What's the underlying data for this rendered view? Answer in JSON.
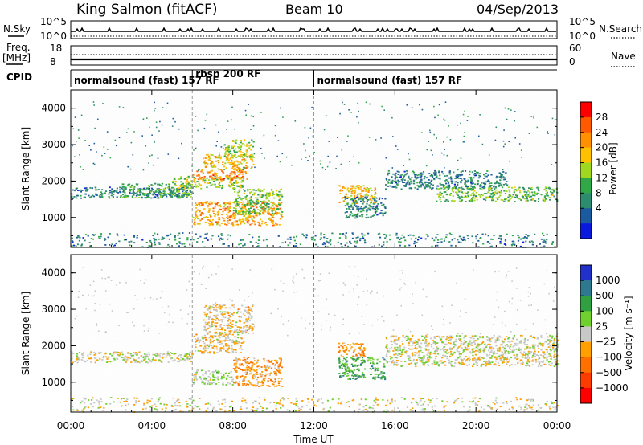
{
  "header": {
    "station": "King Salmon (fitACF)",
    "beam": "Beam 10",
    "date": "04/Sep/2013"
  },
  "strips": {
    "nsky_label": "N.Sky",
    "nsky_ticks": [
      "10^5",
      "10^0"
    ],
    "nsearch_label": "N.Search",
    "nsearch_ticks": [
      "10^5",
      "10^0"
    ],
    "freq_label": "Freq.",
    "freq_unit": "[MHz]",
    "freq_ticks": [
      "18",
      "8"
    ],
    "nave_label": "Nave",
    "nave_ticks": [
      "60",
      "0"
    ],
    "cpid_label": "CPID",
    "cpid_segments": [
      {
        "label": "normalsound (fast) 157 RF",
        "start_hour": 0.0,
        "end_hour": 6.0
      },
      {
        "label": "rbsp 200 RF",
        "start_hour": 6.0,
        "end_hour": 12.0
      },
      {
        "label": "normalsound (fast) 157 RF",
        "start_hour": 12.0,
        "end_hour": 24.0
      }
    ]
  },
  "axes": {
    "ylabel": "Slant Range [km]",
    "xlabel": "Time UT",
    "x_ticks": [
      "00:00",
      "04:00",
      "08:00",
      "12:00",
      "16:00",
      "20:00",
      "00:00"
    ],
    "y_ticks": [
      "1000",
      "2000",
      "3000",
      "4000"
    ]
  },
  "power_scale": {
    "title": "Power [dB]",
    "ticks": [
      "28",
      "24",
      "20",
      "16",
      "12",
      "8",
      "4"
    ],
    "colors": [
      "#ff0000",
      "#ff5a00",
      "#ff9000",
      "#ffc000",
      "#a0d820",
      "#30a848",
      "#2e8c6e",
      "#1c5aa0",
      "#0a1adc"
    ]
  },
  "velocity_scale": {
    "title": "Velocity [m s⁻¹]",
    "ticks": [
      "1000",
      "500",
      "100",
      "25",
      "−25",
      "−100",
      "−500",
      "−1000"
    ],
    "colors": [
      "#2030c8",
      "#2e7890",
      "#30a040",
      "#70d030",
      "#c8c8c8",
      "#ffa000",
      "#ff7000",
      "#ff3c00",
      "#ff0000"
    ]
  },
  "chart_data": [
    {
      "type": "heatmap",
      "panel": "power",
      "x_unit": "hour UT",
      "y_unit": "km",
      "xlim": [
        0,
        24
      ],
      "ylim": [
        180,
        4500
      ],
      "zlim": [
        0,
        32
      ],
      "regions": [
        {
          "x": [
            0.0,
            6.0
          ],
          "y": [
            1550,
            1850
          ],
          "value": 8
        },
        {
          "x": [
            2.5,
            6.0
          ],
          "y": [
            1550,
            1950
          ],
          "value": 12
        },
        {
          "x": [
            5.0,
            8.5
          ],
          "y": [
            1800,
            2150
          ],
          "value": 16
        },
        {
          "x": [
            6.0,
            8.7
          ],
          "y": [
            2050,
            2350
          ],
          "value": 24
        },
        {
          "x": [
            6.5,
            9.0
          ],
          "y": [
            2350,
            2750
          ],
          "value": 20
        },
        {
          "x": [
            7.5,
            9.0
          ],
          "y": [
            2650,
            3150
          ],
          "value": 16
        },
        {
          "x": [
            6.0,
            10.4
          ],
          "y": [
            800,
            1450
          ],
          "value": 22
        },
        {
          "x": [
            8.0,
            10.4
          ],
          "y": [
            1100,
            1800
          ],
          "value": 14
        },
        {
          "x": [
            13.2,
            15.0
          ],
          "y": [
            1400,
            1900
          ],
          "value": 20
        },
        {
          "x": [
            13.5,
            15.5
          ],
          "y": [
            1000,
            1600
          ],
          "value": 8
        },
        {
          "x": [
            15.5,
            21.5
          ],
          "y": [
            1800,
            2300
          ],
          "value": 8
        },
        {
          "x": [
            18.0,
            24.0
          ],
          "y": [
            1450,
            1850
          ],
          "value": 14
        },
        {
          "x": [
            0.0,
            24.0
          ],
          "y": [
            200,
            600
          ],
          "value": 8
        }
      ]
    },
    {
      "type": "heatmap",
      "panel": "velocity",
      "x_unit": "hour UT",
      "y_unit": "km",
      "xlim": [
        0,
        24
      ],
      "ylim": [
        180,
        4500
      ],
      "zlim": [
        -1000,
        1000
      ],
      "regions": [
        {
          "x": [
            0.0,
            6.0
          ],
          "y": [
            1550,
            1850
          ],
          "value": 0
        },
        {
          "x": [
            6.0,
            8.5
          ],
          "y": [
            1800,
            2350
          ],
          "value": -100
        },
        {
          "x": [
            6.5,
            9.0
          ],
          "y": [
            2350,
            3150
          ],
          "value": -100
        },
        {
          "x": [
            8.0,
            10.4
          ],
          "y": [
            900,
            1700
          ],
          "value": -300
        },
        {
          "x": [
            6.0,
            8.0
          ],
          "y": [
            950,
            1350
          ],
          "value": 100
        },
        {
          "x": [
            13.2,
            14.5
          ],
          "y": [
            1700,
            2100
          ],
          "value": -300
        },
        {
          "x": [
            13.2,
            15.5
          ],
          "y": [
            1100,
            1700
          ],
          "value": 400
        },
        {
          "x": [
            15.5,
            24.0
          ],
          "y": [
            1450,
            2300
          ],
          "value": 0
        },
        {
          "x": [
            0.0,
            24.0
          ],
          "y": [
            200,
            600
          ],
          "value": -25
        }
      ]
    }
  ]
}
